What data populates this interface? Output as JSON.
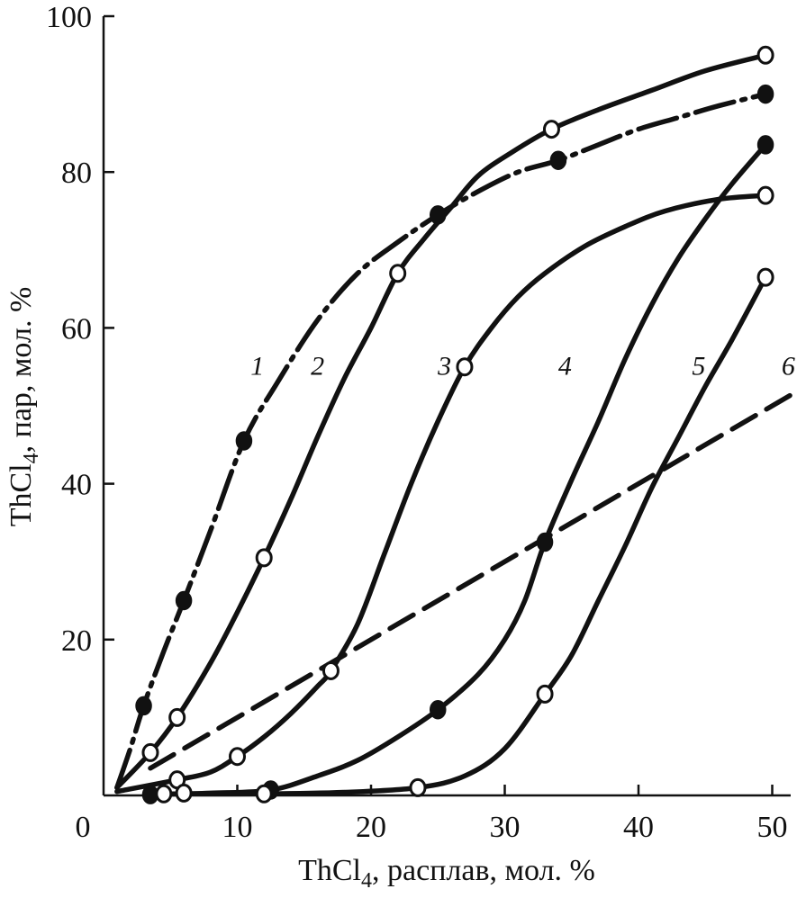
{
  "chart_data": {
    "type": "line",
    "title": "",
    "xlabel": {
      "main": "ThCl",
      "sub": "4",
      "rest": ", расплав, мол. %"
    },
    "ylabel": {
      "main": "ThCl",
      "sub": "4",
      "rest": ", пар, мол. %"
    },
    "xlim": [
      0,
      52
    ],
    "ylim": [
      0,
      100
    ],
    "x_ticks": [
      "10",
      "20",
      "30",
      "40",
      "50"
    ],
    "x_origin_label": "0",
    "y_ticks": [
      "20",
      "40",
      "60",
      "80",
      "100"
    ],
    "grid": false,
    "series": [
      {
        "name": "1",
        "dash": "long-dash-dot",
        "marker": "filled",
        "label_pos": [
          11.5,
          54
        ],
        "curve": [
          [
            1,
            1
          ],
          [
            2,
            6
          ],
          [
            3,
            11.5
          ],
          [
            4.5,
            18.5
          ],
          [
            6,
            25
          ],
          [
            8,
            34
          ],
          [
            10.5,
            45.5
          ],
          [
            13,
            53
          ],
          [
            16,
            61
          ],
          [
            19,
            67
          ],
          [
            22,
            71
          ],
          [
            25,
            74.5
          ],
          [
            28,
            77.5
          ],
          [
            31,
            80
          ],
          [
            34,
            81.5
          ],
          [
            37,
            83.5
          ],
          [
            40,
            85.5
          ],
          [
            43,
            87
          ],
          [
            46,
            88.5
          ],
          [
            49.5,
            90
          ]
        ],
        "points": [
          [
            3,
            11.5
          ],
          [
            6,
            25
          ],
          [
            10.5,
            45.5
          ],
          [
            25,
            74.5
          ],
          [
            34,
            81.5
          ],
          [
            49.5,
            90
          ]
        ]
      },
      {
        "name": "2",
        "dash": "solid",
        "marker": "open",
        "label_pos": [
          16,
          54
        ],
        "curve": [
          [
            1,
            1
          ],
          [
            3.5,
            5.5
          ],
          [
            5.5,
            10
          ],
          [
            8,
            17
          ],
          [
            10,
            23.5
          ],
          [
            12,
            30.5
          ],
          [
            14,
            38
          ],
          [
            16,
            46
          ],
          [
            18,
            53.5
          ],
          [
            20,
            60
          ],
          [
            22,
            67
          ],
          [
            24,
            71.5
          ],
          [
            26,
            75.5
          ],
          [
            28,
            79.5
          ],
          [
            30.5,
            82.5
          ],
          [
            33.5,
            85.5
          ],
          [
            37,
            88
          ],
          [
            41,
            90.5
          ],
          [
            45,
            93
          ],
          [
            49.5,
            95
          ]
        ],
        "points": [
          [
            3.5,
            5.5
          ],
          [
            5.5,
            10
          ],
          [
            12,
            30.5
          ],
          [
            22,
            67
          ],
          [
            33.5,
            85.5
          ],
          [
            49.5,
            95
          ]
        ]
      },
      {
        "name": "3",
        "dash": "solid",
        "marker": "open",
        "label_pos": [
          25.5,
          54
        ],
        "curve": [
          [
            1,
            0.5
          ],
          [
            5.5,
            2
          ],
          [
            8,
            3
          ],
          [
            10,
            5
          ],
          [
            12,
            7.5
          ],
          [
            14,
            10.5
          ],
          [
            16,
            14
          ],
          [
            17,
            16
          ],
          [
            19,
            22
          ],
          [
            21,
            31
          ],
          [
            23,
            40
          ],
          [
            25,
            48
          ],
          [
            27,
            55
          ],
          [
            29,
            60
          ],
          [
            31,
            64
          ],
          [
            33,
            67
          ],
          [
            36,
            70.5
          ],
          [
            39,
            73
          ],
          [
            42,
            75
          ],
          [
            46,
            76.5
          ],
          [
            49.5,
            77
          ]
        ],
        "points": [
          [
            5.5,
            2
          ],
          [
            10,
            5
          ],
          [
            17,
            16
          ],
          [
            27,
            55
          ],
          [
            49.5,
            77
          ]
        ]
      },
      {
        "name": "4",
        "dash": "solid",
        "marker": "filled",
        "label_pos": [
          34.5,
          54
        ],
        "curve": [
          [
            3.5,
            0.1
          ],
          [
            8,
            0.3
          ],
          [
            12.5,
            0.7
          ],
          [
            16,
            2.5
          ],
          [
            19,
            4.5
          ],
          [
            22,
            7.5
          ],
          [
            25,
            11
          ],
          [
            28,
            15.5
          ],
          [
            30,
            20
          ],
          [
            31.5,
            25
          ],
          [
            33,
            32.5
          ],
          [
            35,
            40.5
          ],
          [
            37,
            48
          ],
          [
            39,
            56
          ],
          [
            41,
            63
          ],
          [
            43,
            69
          ],
          [
            45,
            74
          ],
          [
            47,
            78.5
          ],
          [
            49.5,
            83.5
          ]
        ],
        "points": [
          [
            3.5,
            0.1
          ],
          [
            12.5,
            0.7
          ],
          [
            25,
            11
          ],
          [
            33,
            32.5
          ],
          [
            49.5,
            83.5
          ]
        ]
      },
      {
        "name": "5",
        "dash": "solid",
        "marker": "open",
        "label_pos": [
          44.5,
          54
        ],
        "curve": [
          [
            4.5,
            0.2
          ],
          [
            12,
            0.2
          ],
          [
            18,
            0.4
          ],
          [
            23.5,
            1
          ],
          [
            27,
            2.5
          ],
          [
            30,
            6
          ],
          [
            33,
            13
          ],
          [
            35,
            18
          ],
          [
            37,
            25
          ],
          [
            39,
            32
          ],
          [
            41,
            39.5
          ],
          [
            43,
            46
          ],
          [
            45,
            52.5
          ],
          [
            47,
            58.5
          ],
          [
            49.5,
            66.5
          ]
        ],
        "points": [
          [
            4.5,
            0.2
          ],
          [
            6,
            0.3
          ],
          [
            12,
            0.2
          ],
          [
            23.5,
            1
          ],
          [
            33,
            13
          ],
          [
            49.5,
            66.5
          ]
        ]
      },
      {
        "name": "6",
        "dash": "dashed",
        "marker": "none",
        "label_pos": [
          51.2,
          54
        ],
        "curve": [
          [
            3.5,
            3.5
          ],
          [
            52,
            52
          ]
        ],
        "points": []
      }
    ]
  }
}
